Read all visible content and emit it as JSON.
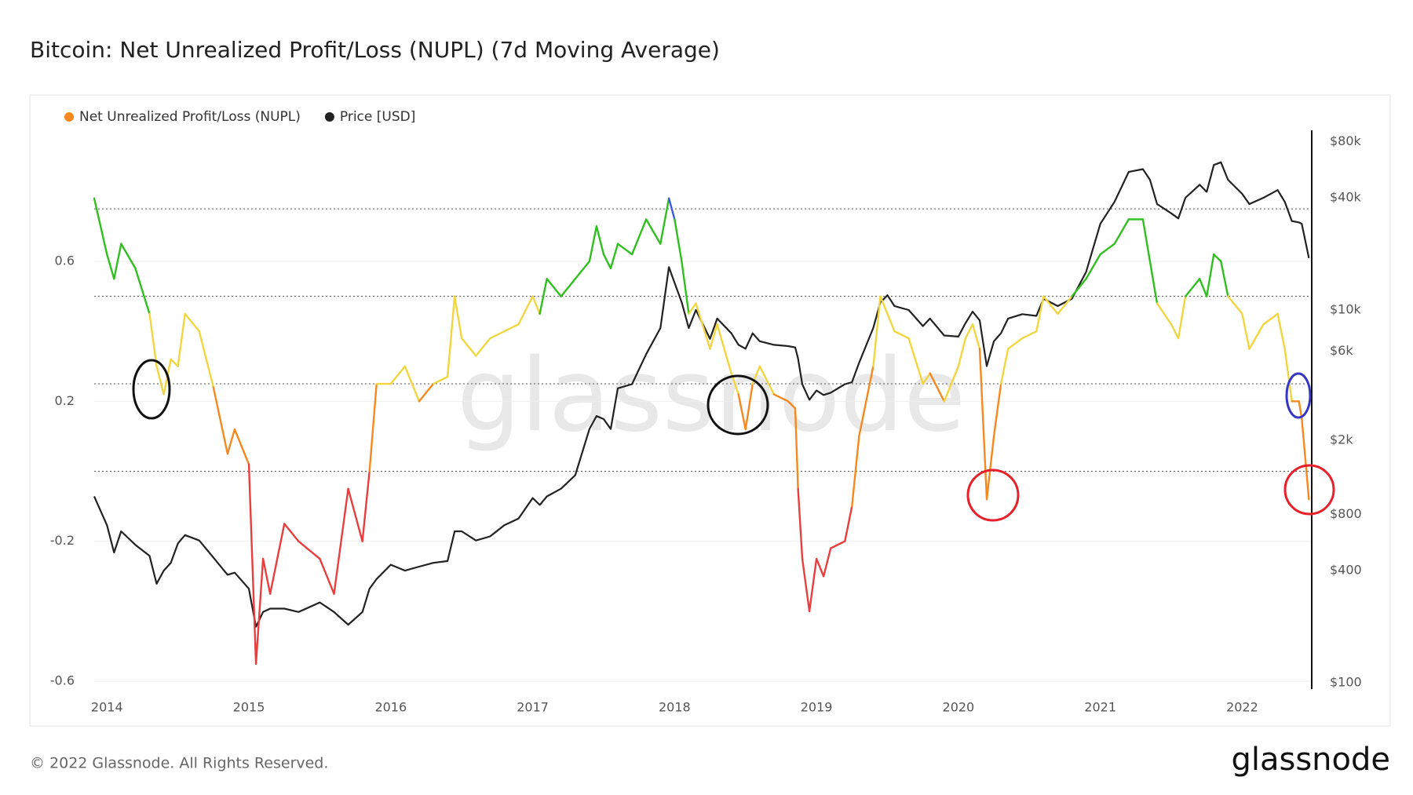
{
  "chart_data": {
    "type": "line",
    "title": "Bitcoin: Net Unrealized Profit/Loss (NUPL) (7d Moving Average)",
    "watermark": "glassnode",
    "x": [
      2013.91,
      2014.0,
      2014.05,
      2014.1,
      2014.2,
      2014.3,
      2014.35,
      2014.4,
      2014.45,
      2014.5,
      2014.55,
      2014.65,
      2014.75,
      2014.85,
      2014.9,
      2015.0,
      2015.05,
      2015.1,
      2015.15,
      2015.25,
      2015.35,
      2015.5,
      2015.6,
      2015.7,
      2015.8,
      2015.85,
      2015.9,
      2016.0,
      2016.1,
      2016.2,
      2016.3,
      2016.4,
      2016.45,
      2016.5,
      2016.6,
      2016.7,
      2016.8,
      2016.9,
      2017.0,
      2017.05,
      2017.1,
      2017.2,
      2017.3,
      2017.4,
      2017.45,
      2017.5,
      2017.55,
      2017.6,
      2017.7,
      2017.8,
      2017.9,
      2017.96,
      2018.0,
      2018.05,
      2018.1,
      2018.15,
      2018.25,
      2018.3,
      2018.4,
      2018.45,
      2018.5,
      2018.55,
      2018.6,
      2018.7,
      2018.8,
      2018.85,
      2018.87,
      2018.9,
      2018.95,
      2019.0,
      2019.05,
      2019.1,
      2019.2,
      2019.25,
      2019.3,
      2019.4,
      2019.45,
      2019.5,
      2019.55,
      2019.65,
      2019.75,
      2019.8,
      2019.9,
      2020.0,
      2020.05,
      2020.1,
      2020.15,
      2020.2,
      2020.25,
      2020.3,
      2020.35,
      2020.45,
      2020.55,
      2020.6,
      2020.7,
      2020.8,
      2020.9,
      2021.0,
      2021.1,
      2021.2,
      2021.3,
      2021.35,
      2021.4,
      2021.5,
      2021.55,
      2021.6,
      2021.7,
      2021.75,
      2021.8,
      2021.85,
      2021.9,
      2022.0,
      2022.05,
      2022.15,
      2022.25,
      2022.3,
      2022.35,
      2022.4,
      2022.42,
      2022.47
    ],
    "series": [
      {
        "name": "Net Unrealized Profit/Loss (NUPL)",
        "color": "#f5891f",
        "axis": "y",
        "values": [
          0.78,
          0.62,
          0.55,
          0.65,
          0.58,
          0.45,
          0.3,
          0.22,
          0.32,
          0.3,
          0.45,
          0.4,
          0.24,
          0.05,
          0.12,
          0.02,
          -0.55,
          -0.25,
          -0.35,
          -0.15,
          -0.2,
          -0.25,
          -0.35,
          -0.05,
          -0.2,
          0.0,
          0.25,
          0.25,
          0.3,
          0.2,
          0.25,
          0.27,
          0.5,
          0.38,
          0.33,
          0.38,
          0.4,
          0.42,
          0.5,
          0.45,
          0.55,
          0.5,
          0.55,
          0.6,
          0.7,
          0.62,
          0.58,
          0.65,
          0.62,
          0.72,
          0.65,
          0.78,
          0.72,
          0.6,
          0.45,
          0.48,
          0.35,
          0.42,
          0.28,
          0.22,
          0.12,
          0.25,
          0.3,
          0.22,
          0.2,
          0.18,
          -0.05,
          -0.25,
          -0.4,
          -0.25,
          -0.3,
          -0.22,
          -0.2,
          -0.1,
          0.1,
          0.3,
          0.5,
          0.45,
          0.4,
          0.38,
          0.25,
          0.28,
          0.2,
          0.3,
          0.38,
          0.42,
          0.35,
          -0.08,
          0.1,
          0.25,
          0.35,
          0.38,
          0.4,
          0.5,
          0.45,
          0.5,
          0.55,
          0.62,
          0.65,
          0.72,
          0.72,
          0.6,
          0.48,
          0.42,
          0.38,
          0.5,
          0.55,
          0.5,
          0.62,
          0.6,
          0.5,
          0.45,
          0.35,
          0.42,
          0.45,
          0.35,
          0.2,
          0.2,
          0.15,
          -0.08
        ]
      },
      {
        "name": "Price [USD]",
        "color": "#222222",
        "axis": "y2",
        "values": [
          1000,
          700,
          500,
          650,
          550,
          480,
          340,
          400,
          440,
          560,
          620,
          580,
          470,
          380,
          390,
          320,
          200,
          240,
          250,
          250,
          240,
          270,
          240,
          205,
          240,
          320,
          360,
          430,
          400,
          420,
          440,
          450,
          650,
          650,
          580,
          610,
          700,
          760,
          980,
          900,
          1000,
          1100,
          1300,
          2300,
          2700,
          2600,
          2300,
          3800,
          4000,
          5800,
          8000,
          17000,
          14000,
          11000,
          8000,
          10000,
          7000,
          9000,
          7500,
          6500,
          6200,
          7500,
          6800,
          6500,
          6400,
          6300,
          5500,
          4000,
          3300,
          3700,
          3500,
          3600,
          4000,
          4100,
          5200,
          8000,
          11000,
          12000,
          10500,
          10000,
          8200,
          9000,
          7300,
          7200,
          8500,
          9800,
          8800,
          5000,
          6800,
          7500,
          9000,
          9500,
          9300,
          11500,
          10500,
          11500,
          16000,
          29000,
          38000,
          55000,
          57000,
          50000,
          37000,
          33000,
          31000,
          40000,
          47000,
          43000,
          60000,
          62000,
          50000,
          42000,
          37000,
          40000,
          44000,
          38000,
          30000,
          29500,
          29000,
          19000
        ]
      }
    ],
    "zone_colors": {
      "thresholds": [
        0.75,
        0.5,
        0.25,
        0
      ],
      "colors": [
        "#3b5bdb",
        "#2fbf1f",
        "#f2d640",
        "#f5891f",
        "#e83e3e"
      ]
    },
    "xlim": [
      2013.91,
      2022.49
    ],
    "xticks": [
      2014,
      2015,
      2016,
      2017,
      2018,
      2019,
      2020,
      2021,
      2022
    ],
    "ylim": [
      -0.62,
      0.97
    ],
    "yticks": [
      0.6,
      0.2,
      -0.2,
      -0.6
    ],
    "y2lim": [
      93.5,
      90300
    ],
    "y2scale": "log",
    "y2ticks": [
      {
        "value": 80000,
        "label": "$80k"
      },
      {
        "value": 40000,
        "label": "$40k"
      },
      {
        "value": 10000,
        "label": "$10k"
      },
      {
        "value": 6000,
        "label": "$6k"
      },
      {
        "value": 2000,
        "label": "$2k"
      },
      {
        "value": 800,
        "label": "$800"
      },
      {
        "value": 400,
        "label": "$400"
      },
      {
        "value": 100,
        "label": "$100"
      }
    ],
    "grid": true
  },
  "footer": {
    "copyright": "© 2022 Glassnode. All Rights Reserved.",
    "logo": "glassnode"
  }
}
